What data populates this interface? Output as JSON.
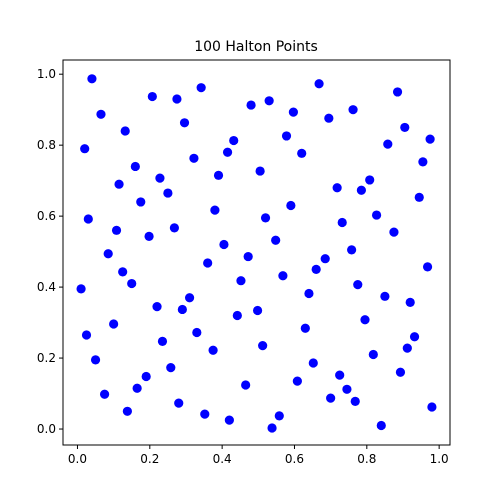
{
  "chart_data": {
    "type": "scatter",
    "title": "100 Halton Points",
    "xlabel": "",
    "ylabel": "",
    "xlim": [
      -0.04,
      1.03
    ],
    "ylim": [
      -0.045,
      1.04
    ],
    "xticks": [
      "0.0",
      "0.2",
      "0.4",
      "0.6",
      "0.8",
      "1.0"
    ],
    "yticks": [
      "0.0",
      "0.2",
      "0.4",
      "0.6",
      "0.8",
      "1.0"
    ],
    "grid": false,
    "marker_color": "#0000ff",
    "points": [
      [
        0.01,
        0.395
      ],
      [
        0.02,
        0.79
      ],
      [
        0.025,
        0.265
      ],
      [
        0.03,
        0.592
      ],
      [
        0.04,
        0.987
      ],
      [
        0.05,
        0.195
      ],
      [
        0.065,
        0.887
      ],
      [
        0.075,
        0.098
      ],
      [
        0.085,
        0.494
      ],
      [
        0.1,
        0.296
      ],
      [
        0.108,
        0.56
      ],
      [
        0.115,
        0.69
      ],
      [
        0.125,
        0.443
      ],
      [
        0.132,
        0.84
      ],
      [
        0.138,
        0.05
      ],
      [
        0.15,
        0.41
      ],
      [
        0.16,
        0.74
      ],
      [
        0.165,
        0.115
      ],
      [
        0.175,
        0.64
      ],
      [
        0.19,
        0.148
      ],
      [
        0.198,
        0.543
      ],
      [
        0.207,
        0.937
      ],
      [
        0.22,
        0.345
      ],
      [
        0.228,
        0.707
      ],
      [
        0.235,
        0.247
      ],
      [
        0.25,
        0.665
      ],
      [
        0.258,
        0.173
      ],
      [
        0.268,
        0.567
      ],
      [
        0.275,
        0.93
      ],
      [
        0.28,
        0.073
      ],
      [
        0.29,
        0.337
      ],
      [
        0.296,
        0.863
      ],
      [
        0.31,
        0.37
      ],
      [
        0.322,
        0.763
      ],
      [
        0.33,
        0.272
      ],
      [
        0.342,
        0.962
      ],
      [
        0.352,
        0.042
      ],
      [
        0.36,
        0.468
      ],
      [
        0.375,
        0.222
      ],
      [
        0.38,
        0.617
      ],
      [
        0.39,
        0.715
      ],
      [
        0.405,
        0.52
      ],
      [
        0.415,
        0.78
      ],
      [
        0.42,
        0.025
      ],
      [
        0.432,
        0.813
      ],
      [
        0.442,
        0.32
      ],
      [
        0.452,
        0.418
      ],
      [
        0.465,
        0.124
      ],
      [
        0.472,
        0.486
      ],
      [
        0.48,
        0.913
      ],
      [
        0.498,
        0.334
      ],
      [
        0.505,
        0.727
      ],
      [
        0.512,
        0.235
      ],
      [
        0.52,
        0.595
      ],
      [
        0.53,
        0.925
      ],
      [
        0.538,
        0.003
      ],
      [
        0.548,
        0.532
      ],
      [
        0.558,
        0.037
      ],
      [
        0.568,
        0.432
      ],
      [
        0.578,
        0.826
      ],
      [
        0.59,
        0.63
      ],
      [
        0.597,
        0.893
      ],
      [
        0.608,
        0.135
      ],
      [
        0.62,
        0.777
      ],
      [
        0.63,
        0.284
      ],
      [
        0.64,
        0.382
      ],
      [
        0.652,
        0.186
      ],
      [
        0.66,
        0.45
      ],
      [
        0.668,
        0.973
      ],
      [
        0.685,
        0.48
      ],
      [
        0.695,
        0.876
      ],
      [
        0.7,
        0.087
      ],
      [
        0.718,
        0.68
      ],
      [
        0.725,
        0.152
      ],
      [
        0.732,
        0.582
      ],
      [
        0.745,
        0.112
      ],
      [
        0.758,
        0.505
      ],
      [
        0.762,
        0.9
      ],
      [
        0.768,
        0.078
      ],
      [
        0.775,
        0.407
      ],
      [
        0.785,
        0.673
      ],
      [
        0.795,
        0.308
      ],
      [
        0.808,
        0.702
      ],
      [
        0.818,
        0.21
      ],
      [
        0.827,
        0.603
      ],
      [
        0.84,
        0.01
      ],
      [
        0.85,
        0.374
      ],
      [
        0.858,
        0.803
      ],
      [
        0.875,
        0.555
      ],
      [
        0.885,
        0.95
      ],
      [
        0.893,
        0.16
      ],
      [
        0.905,
        0.85
      ],
      [
        0.912,
        0.228
      ],
      [
        0.92,
        0.357
      ],
      [
        0.932,
        0.26
      ],
      [
        0.945,
        0.653
      ],
      [
        0.955,
        0.753
      ],
      [
        0.968,
        0.457
      ],
      [
        0.975,
        0.817
      ],
      [
        0.98,
        0.062
      ]
    ]
  }
}
